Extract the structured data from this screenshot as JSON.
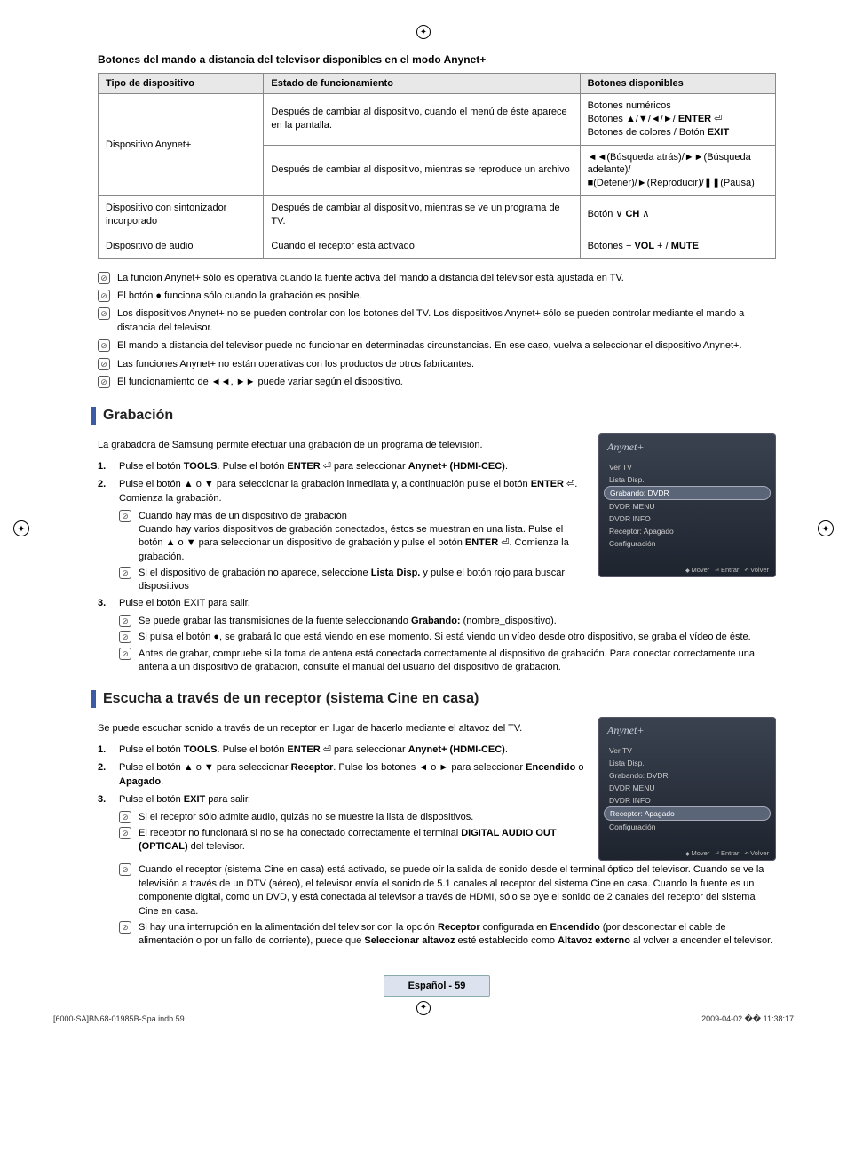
{
  "header_title": "Botones del mando a distancia del televisor disponibles en el modo Anynet+",
  "table": {
    "headers": [
      "Tipo de dispositivo",
      "Estado de funcionamiento",
      "Botones disponibles"
    ],
    "rows": [
      {
        "c1": "Dispositivo Anynet+",
        "c1_rowspan": 2,
        "c2": "Después de cambiar al dispositivo, cuando el menú de éste aparece en la pantalla.",
        "c3": "Botones numéricos\nBotones ▲/▼/◄/►/ ENTER ⏎\nBotones de colores / Botón EXIT"
      },
      {
        "c2": "Después de cambiar al dispositivo, mientras se reproduce un archivo",
        "c3": "◄◄(Búsqueda atrás)/►►(Búsqueda adelante)/\n■(Detener)/►(Reproducir)/❚❚(Pausa)"
      },
      {
        "c1": "Dispositivo con sintonizador incorporado",
        "c2": "Después de cambiar al dispositivo, mientras se ve un programa de TV.",
        "c3": "Botón ∨ CH ∧"
      },
      {
        "c1": "Dispositivo de audio",
        "c2": "Cuando el receptor está activado",
        "c3": "Botones − VOL + / MUTE"
      }
    ]
  },
  "top_notes": [
    "La función Anynet+ sólo es operativa cuando la fuente activa del mando a distancia del televisor está ajustada en TV.",
    "El botón ● funciona sólo cuando la grabación es posible.",
    "Los dispositivos Anynet+ no se pueden controlar con los botones del TV. Los dispositivos Anynet+ sólo se pueden controlar mediante el mando a distancia del televisor.",
    "El mando a distancia del televisor puede no funcionar en determinadas circunstancias. En ese caso, vuelva a seleccionar el dispositivo Anynet+.",
    "Las funciones Anynet+ no están operativas con los productos de otros fabricantes.",
    "El funcionamiento de ◄◄, ►► puede variar según el dispositivo."
  ],
  "grabacion": {
    "title": "Grabación",
    "intro": "La grabadora de Samsung permite efectuar una grabación de un programa de televisión.",
    "steps": [
      "Pulse el botón TOOLS. Pulse el botón ENTER ⏎ para seleccionar Anynet+ (HDMI-CEC).",
      "Pulse el botón ▲ o ▼ para seleccionar la grabación inmediata y, a continuación pulse el botón ENTER ⏎. Comienza la grabación."
    ],
    "subnotes_after_2": [
      "Cuando hay más de un dispositivo de grabación\nCuando hay varios dispositivos de grabación conectados, éstos se muestran en una lista. Pulse el botón ▲ o ▼ para seleccionar un dispositivo de grabación y pulse el botón ENTER ⏎. Comienza la grabación.",
      "Si el dispositivo de grabación no aparece, seleccione Lista Disp. y pulse el botón rojo para buscar dispositivos"
    ],
    "step3": "Pulse el botón EXIT para salir.",
    "subnotes_after_3": [
      "Se puede grabar las transmisiones de la fuente seleccionando Grabando: (nombre_dispositivo).",
      "Si pulsa el botón ●, se grabará lo que está viendo en ese momento. Si está viendo un vídeo desde otro dispositivo, se graba el vídeo de éste.",
      "Antes de grabar, compruebe si la toma de antena está conectada correctamente al dispositivo de grabación. Para conectar correctamente una antena a un dispositivo de grabación, consulte el manual del usuario del dispositivo de grabación."
    ],
    "osd": {
      "title": "Anynet+",
      "items": [
        "Ver TV",
        "Lista Disp.",
        "Grabando: DVDR",
        "DVDR MENU",
        "DVDR INFO",
        "Receptor: Apagado",
        "Configuración"
      ],
      "selected_index": 2,
      "footer": [
        "Mover",
        "Entrar",
        "Volver"
      ]
    }
  },
  "escucha": {
    "title": "Escucha a través de un receptor (sistema Cine en casa)",
    "intro": "Se puede escuchar sonido a través de un receptor en lugar de hacerlo mediante el altavoz del TV.",
    "steps": [
      "Pulse el botón TOOLS. Pulse el botón ENTER ⏎ para seleccionar Anynet+ (HDMI-CEC).",
      "Pulse el botón ▲ o ▼ para seleccionar Receptor. Pulse los botones ◄ o ► para seleccionar Encendido o Apagado.",
      "Pulse el botón EXIT para salir."
    ],
    "subnotes": [
      "Si el receptor sólo admite audio, quizás no se muestre la lista de dispositivos.",
      "El receptor no funcionará si no se ha conectado correctamente el terminal DIGITAL AUDIO OUT (OPTICAL) del televisor.",
      "Cuando el receptor (sistema Cine en casa) está activado, se puede oír la salida de sonido desde el terminal óptico del televisor. Cuando se ve la televisión a través de un DTV (aéreo), el televisor envía el sonido de 5.1 canales al receptor del sistema Cine en casa. Cuando la fuente es un componente digital, como un DVD, y está conectada al televisor a través de HDMI, sólo se oye el sonido de 2 canales del receptor del sistema Cine en casa.",
      "Si hay una interrupción en la alimentación del televisor con la opción Receptor configurada en Encendido (por desconectar el cable de alimentación o por un fallo de corriente), puede que Seleccionar altavoz esté establecido como Altavoz externo al volver a encender el televisor."
    ],
    "osd": {
      "title": "Anynet+",
      "items": [
        "Ver TV",
        "Lista Disp.",
        "Grabando: DVDR",
        "DVDR MENU",
        "DVDR INFO",
        "Receptor: Apagado",
        "Configuración"
      ],
      "selected_index": 5,
      "footer": [
        "Mover",
        "Entrar",
        "Volver"
      ]
    }
  },
  "page_label": "Español - 59",
  "doc_footer_left": "[6000-SA]BN68-01985B-Spa.indb   59",
  "doc_footer_right": "2009-04-02   �� 11:38:17"
}
